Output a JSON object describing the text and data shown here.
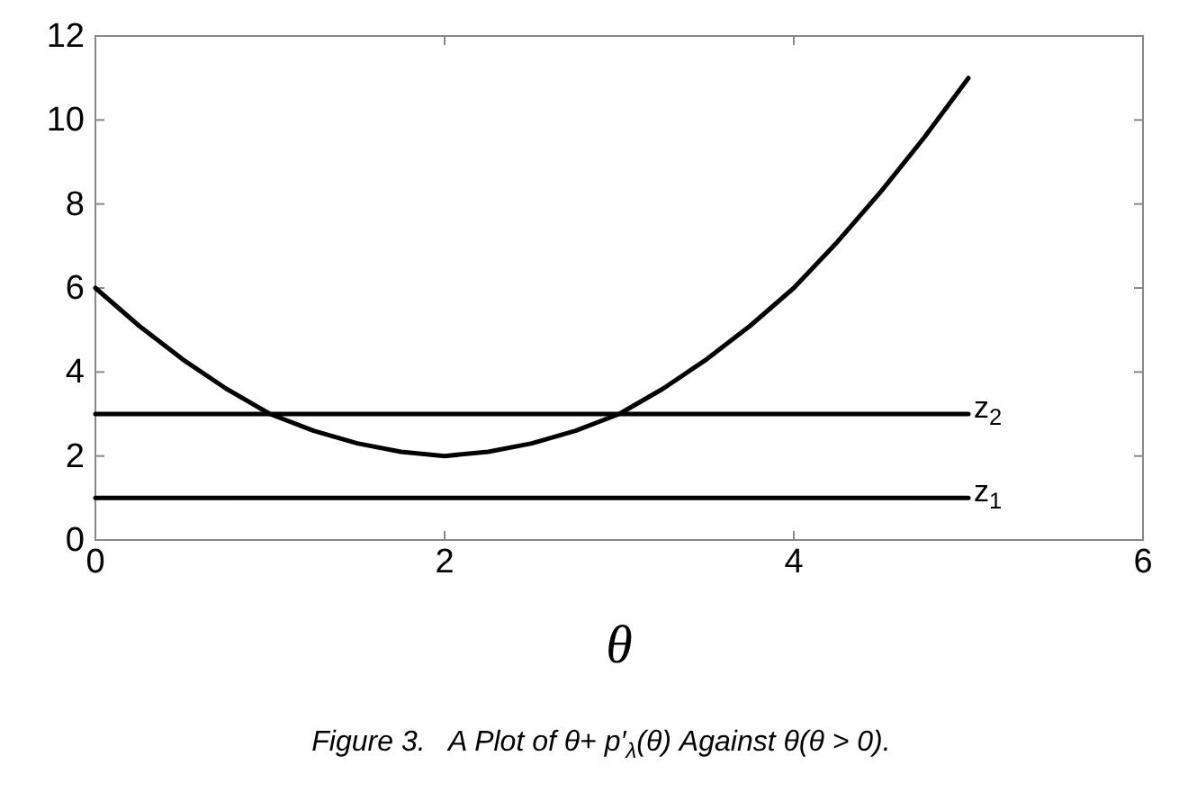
{
  "chart_data": {
    "type": "line",
    "xlabel": "θ",
    "annotations": [
      "Figure 3.   A Plot of θ+ p′$_{λ}$(θ) Against θ(θ > 0)."
    ],
    "xlim": [
      0,
      6
    ],
    "ylim": [
      0,
      12
    ],
    "xticks": [
      0,
      2,
      4,
      6
    ],
    "yticks": [
      0,
      2,
      4,
      6,
      8,
      10,
      12
    ],
    "grid": false,
    "legend": false,
    "marker": "none",
    "line_style": "solid",
    "series": [
      {
        "color": "#000000",
        "x": [
          0,
          0.25,
          0.5,
          0.75,
          1,
          1.25,
          1.5,
          1.75,
          2,
          2.25,
          2.5,
          2.75,
          3,
          3.25,
          3.5,
          3.75,
          4,
          4.25,
          4.5,
          4.75,
          5
        ],
        "values": [
          6,
          5.1,
          4.3,
          3.6,
          3,
          2.6,
          2.3,
          2.1,
          2,
          2.1,
          2.3,
          2.6,
          3,
          3.6,
          4.3,
          5.1,
          6,
          7.1,
          8.3,
          9.6,
          11
        ]
      },
      {
        "name": "z$_{2}$",
        "color": "#000000",
        "x": [
          0,
          5
        ],
        "values": [
          3,
          3
        ]
      },
      {
        "name": "z$_{1}$",
        "color": "#000000",
        "x": [
          0,
          5
        ],
        "values": [
          1,
          1
        ]
      }
    ]
  }
}
